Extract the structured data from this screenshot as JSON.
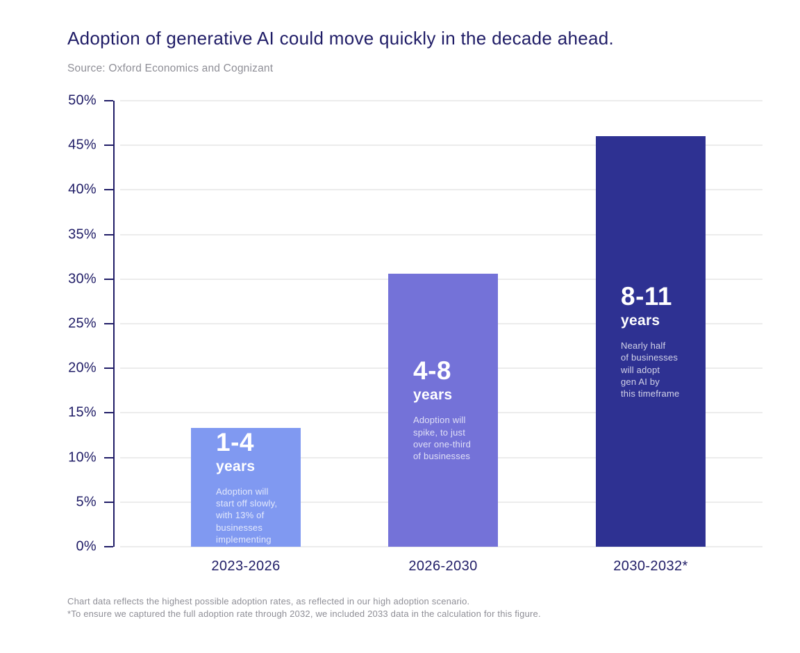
{
  "header": {
    "title": "Adoption of generative AI could move quickly  in the decade ahead.",
    "source": "Source: Oxford Economics and Cognizant"
  },
  "chart_data": {
    "type": "bar",
    "title": "Adoption of generative AI could move quickly in the decade ahead.",
    "source": "Oxford Economics and Cognizant",
    "xlabel": "",
    "ylabel": "",
    "ylim": [
      0,
      50
    ],
    "ytick_step": 5,
    "ytick_suffix": "%",
    "grid": true,
    "legend": "none",
    "categories": [
      "2023-2026",
      "2026-2030",
      "2030-2032*"
    ],
    "values": [
      13.3,
      30.6,
      46
    ],
    "bars": [
      {
        "category": "2023-2026",
        "value": 13.3,
        "color": "#8099F1",
        "label": "1-4",
        "sublabel": "years",
        "description": "Adoption will\nstart off slowly,\nwith 13% of\nbusinesses\nimplementing"
      },
      {
        "category": "2026-2030",
        "value": 30.6,
        "color": "#7472D8",
        "label": "4-8",
        "sublabel": "years",
        "description": "Adoption will\nspike, to just\nover one-third\nof businesses"
      },
      {
        "category": "2030-2032*",
        "value": 46,
        "color": "#2E3192",
        "label": "8-11",
        "sublabel": "years",
        "description": "Nearly half\nof businesses\nwill adopt\ngen AI by\nthis timeframe"
      }
    ]
  },
  "footnotes": {
    "line1": "Chart data reflects the highest possible adoption rates, as reflected in our high adoption scenario.",
    "line2": "*To ensure we captured the full adoption rate through 2032, we included 2033 data in the calculation for this figure."
  },
  "colors": {
    "navy_text": "#1F1C66",
    "muted_text": "#8E8E96",
    "gridline": "#ECECEC"
  }
}
